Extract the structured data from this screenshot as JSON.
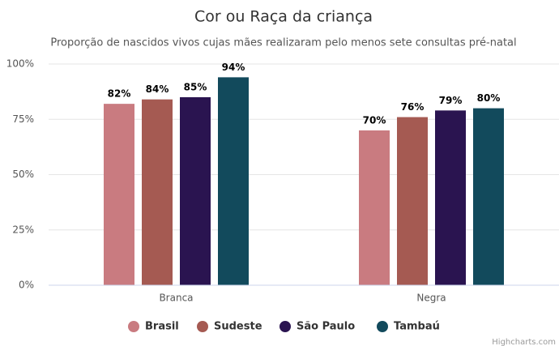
{
  "chart_data": {
    "type": "bar",
    "title": "Cor ou Raça da criança",
    "subtitle": "Proporção de nascidos vivos cujas mães realizaram pelo menos sete consultas pré-natal",
    "categories": [
      "Branca",
      "Negra"
    ],
    "series": [
      {
        "name": "Brasil",
        "color": "#c97b80",
        "values": [
          82,
          70
        ],
        "value_labels": [
          "82%",
          "70%"
        ]
      },
      {
        "name": "Sudeste",
        "color": "#a55a52",
        "values": [
          84,
          76
        ],
        "value_labels": [
          "84%",
          "76%"
        ]
      },
      {
        "name": "São Paulo",
        "color": "#2a1450",
        "values": [
          85,
          79
        ],
        "value_labels": [
          "85%",
          "79%"
        ]
      },
      {
        "name": "Tambaú",
        "color": "#124a5c",
        "values": [
          94,
          80
        ],
        "value_labels": [
          "94%",
          "80%"
        ]
      }
    ],
    "ylim": [
      0,
      100
    ],
    "yticks": [
      {
        "value": 0,
        "label": "0%"
      },
      {
        "value": 25,
        "label": "25%"
      },
      {
        "value": 50,
        "label": "50%"
      },
      {
        "value": 75,
        "label": "75%"
      },
      {
        "value": 100,
        "label": "100%"
      }
    ],
    "grid": true,
    "legend": "bottom",
    "credits": "Highcharts.com"
  }
}
